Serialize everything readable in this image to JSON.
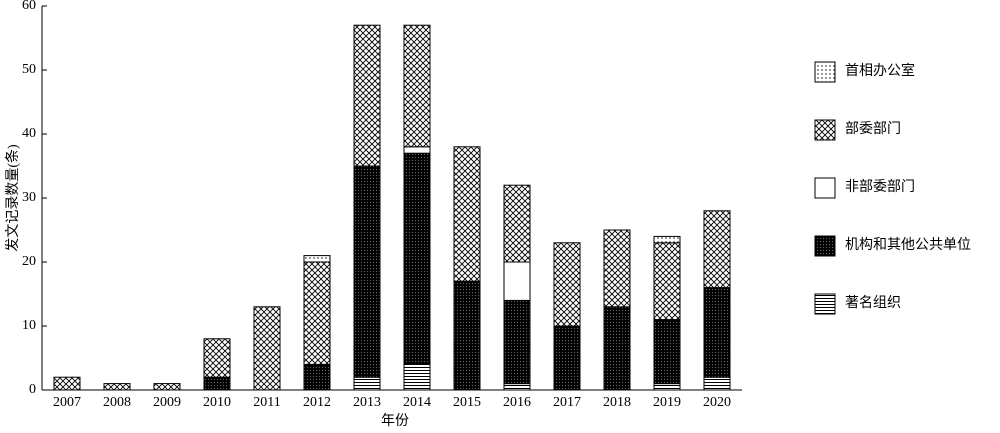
{
  "chart_data": {
    "type": "stacked_bar",
    "x_label": "年份",
    "y_label": "发文记录数量(条)",
    "categories": [
      "2007",
      "2008",
      "2009",
      "2010",
      "2011",
      "2012",
      "2013",
      "2014",
      "2015",
      "2016",
      "2017",
      "2018",
      "2019",
      "2020"
    ],
    "series": [
      {
        "name": "著名组织",
        "color": "#000000",
        "pattern": "hlines",
        "values": [
          0,
          0,
          0,
          0,
          0,
          0,
          2,
          4,
          0,
          1,
          0,
          0,
          1,
          2
        ]
      },
      {
        "name": "机构和其他公共单位",
        "color": "#000000",
        "pattern": "dense",
        "values": [
          0,
          0,
          0,
          2,
          0,
          4,
          33,
          33,
          17,
          13,
          10,
          13,
          10,
          14
        ]
      },
      {
        "name": "非部委部门",
        "color": "#000000",
        "pattern": "none",
        "values": [
          0,
          0,
          0,
          0,
          0,
          0,
          0,
          1,
          0,
          6,
          0,
          0,
          0,
          0
        ]
      },
      {
        "name": "部委部门",
        "color": "#000000",
        "pattern": "crosshatch",
        "values": [
          2,
          1,
          1,
          6,
          13,
          16,
          22,
          19,
          21,
          12,
          13,
          12,
          12,
          12
        ]
      },
      {
        "name": "首相办公室",
        "color": "#000000",
        "pattern": "dots",
        "values": [
          0,
          0,
          0,
          0,
          0,
          1,
          0,
          0,
          0,
          0,
          0,
          0,
          1,
          0
        ]
      }
    ],
    "ylim": [
      0,
      60
    ],
    "yticks": [
      0,
      10,
      20,
      30,
      40,
      50,
      60
    ],
    "legend": "right"
  }
}
